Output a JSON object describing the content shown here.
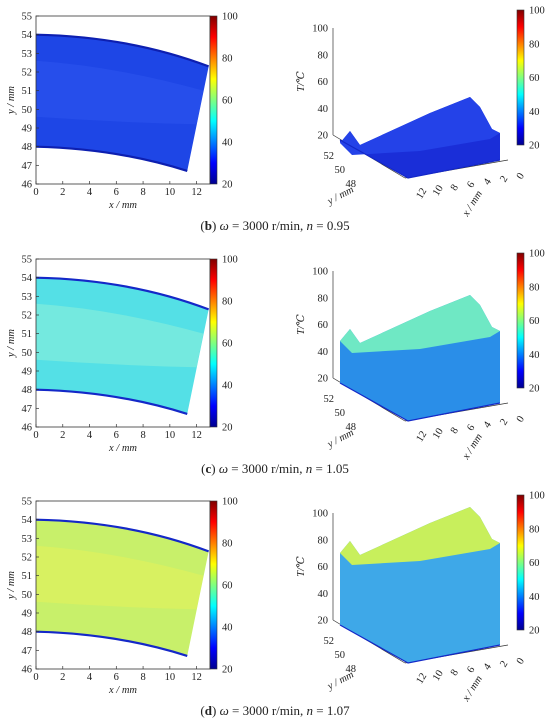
{
  "panels": [
    {
      "caption": {
        "letter": "b",
        "omega": "3000 r/min",
        "n": "0.95"
      },
      "colorbar_ticks": [
        "20",
        "40",
        "60",
        "80",
        "100"
      ],
      "fill": "#1e46e6",
      "fill_mid": "#2d55ee",
      "edge": "#0d1fb0",
      "surface_top": "#2442e8",
      "surface_side": "#1a2ed8"
    },
    {
      "caption": {
        "letter": "c",
        "omega": "3000 r/min",
        "n": "1.05"
      },
      "colorbar_ticks": [
        "20",
        "40",
        "60",
        "80",
        "100"
      ],
      "fill": "#54e0e6",
      "fill_mid": "#8ef0d8",
      "edge": "#1428c8",
      "surface_top": "#6fe8c4",
      "surface_side": "#2a8ee8"
    },
    {
      "caption": {
        "letter": "d",
        "omega": "3000 r/min",
        "n": "1.07"
      },
      "colorbar_ticks": [
        "20",
        "40",
        "60",
        "80",
        "100"
      ],
      "fill": "#c8f06a",
      "fill_mid": "#e6f25a",
      "edge": "#1428c8",
      "surface_top": "#c8ef5c",
      "surface_side": "#3ea8e8"
    }
  ],
  "axes2d": {
    "x_ticks": [
      "0",
      "2",
      "4",
      "6",
      "8",
      "10",
      "12"
    ],
    "y_ticks": [
      "46",
      "47",
      "48",
      "49",
      "50",
      "51",
      "52",
      "53",
      "54",
      "55"
    ],
    "x_label": "x / mm",
    "y_label": "y / mm"
  },
  "axes3d": {
    "z_ticks": [
      "20",
      "40",
      "60",
      "80",
      "100"
    ],
    "z_label": "T/℃",
    "y_ticks": [
      "52",
      "50",
      "48"
    ],
    "y_label": "y / mm",
    "x_ticks": [
      "12",
      "10",
      "8",
      "6",
      "4",
      "2",
      "0"
    ],
    "x_label": "x / mm"
  }
}
